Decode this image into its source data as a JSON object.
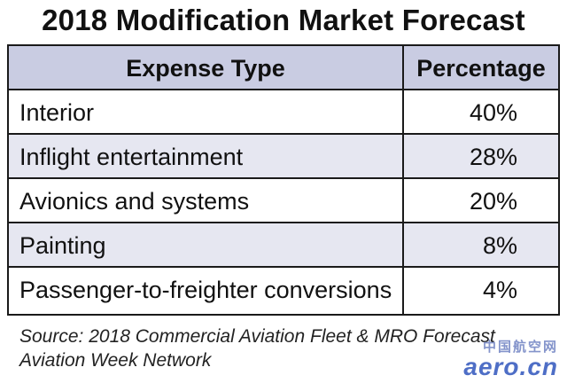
{
  "title": "2018 Modification Market Forecast",
  "chart_data": {
    "type": "table",
    "columns": [
      "Expense Type",
      "Percentage"
    ],
    "rows": [
      {
        "expense_type": "Interior",
        "percentage": "40%"
      },
      {
        "expense_type": "Inflight entertainment",
        "percentage": "28%"
      },
      {
        "expense_type": "Avionics and systems",
        "percentage": "20%"
      },
      {
        "expense_type": "Painting",
        "percentage": "8%"
      },
      {
        "expense_type": "Passenger-to-freighter conversions",
        "percentage": "4%"
      }
    ]
  },
  "source_lines": [
    "Source: 2018 Commercial Aviation Fleet & MRO Forecast",
    "Aviation Week Network"
  ],
  "watermark": {
    "top": "中国航空网",
    "main": "aero.cn"
  },
  "colors": {
    "header_bg": "#c9cce2",
    "shaded_row_bg": "#e6e7f1",
    "border": "#1a1a1a"
  }
}
